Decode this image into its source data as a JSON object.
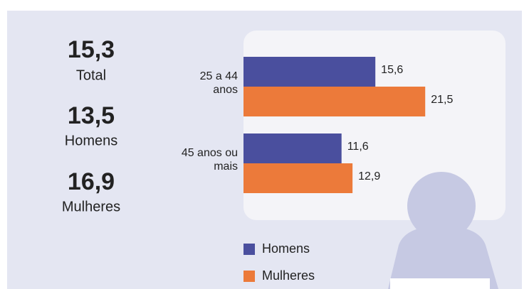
{
  "stats": [
    {
      "value": "15,3",
      "label": "Total"
    },
    {
      "value": "13,5",
      "label": "Homens"
    },
    {
      "value": "16,9",
      "label": "Mulheres"
    }
  ],
  "chart_data": {
    "type": "bar",
    "orientation": "horizontal",
    "categories": [
      "25 a 44 anos",
      "45 anos ou mais"
    ],
    "series": [
      {
        "name": "Homens",
        "color": "#4a4f9e",
        "values": [
          15.6,
          11.6
        ],
        "value_labels": [
          "15,6",
          "11,6"
        ]
      },
      {
        "name": "Mulheres",
        "color": "#ec7a3a",
        "values": [
          21.5,
          12.9
        ],
        "value_labels": [
          "21,5",
          "12,9"
        ]
      }
    ],
    "xlim": [
      0,
      31
    ]
  }
}
